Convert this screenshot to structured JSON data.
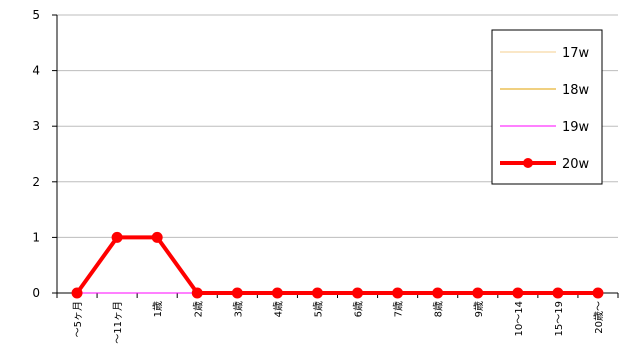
{
  "chart_data": {
    "type": "line",
    "categories": [
      "～5ヶ月",
      "～11ヶ月",
      "1歳",
      "2歳",
      "3歳",
      "4歳",
      "5歳",
      "6歳",
      "7歳",
      "8歳",
      "9歳",
      "10～14",
      "15～19",
      "20歳～"
    ],
    "ylim": [
      0,
      5
    ],
    "yticks": [
      "0",
      "1",
      "2",
      "3",
      "4",
      "5"
    ],
    "grid": true,
    "legend_position": "top-right",
    "series": [
      {
        "name": "17w",
        "color": "#f5cf8f",
        "values": [
          0,
          0,
          0,
          0,
          0,
          0,
          0,
          0,
          0,
          0,
          0,
          0,
          0,
          0
        ],
        "markers": false
      },
      {
        "name": "18w",
        "color": "#e0a000",
        "values": [
          0,
          0,
          0,
          0,
          0,
          0,
          0,
          0,
          0,
          0,
          0,
          0,
          0,
          0
        ],
        "markers": false
      },
      {
        "name": "19w",
        "color": "#ff00ff",
        "values": [
          0,
          0,
          0,
          0,
          0,
          0,
          0,
          0,
          0,
          0,
          0,
          0,
          0,
          0
        ],
        "markers": false
      },
      {
        "name": "20w",
        "color": "#ff0000",
        "values": [
          0,
          1,
          1,
          0,
          0,
          0,
          0,
          0,
          0,
          0,
          0,
          0,
          0,
          0
        ],
        "markers": true
      }
    ]
  }
}
